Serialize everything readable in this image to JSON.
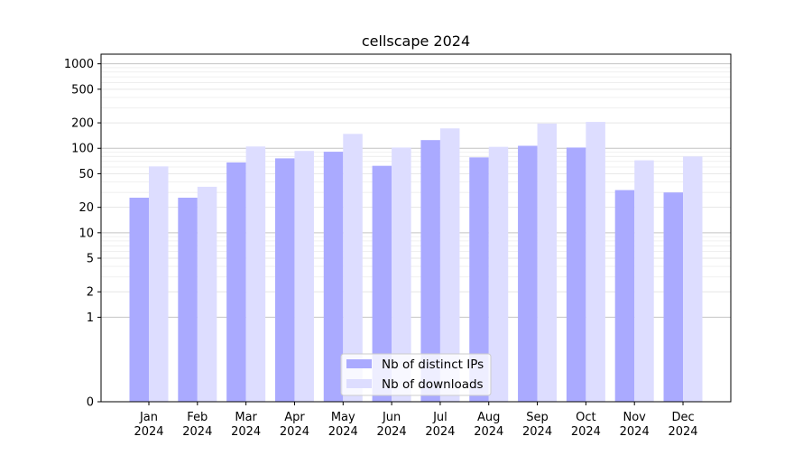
{
  "chart_data": {
    "type": "bar",
    "title": "cellscape 2024",
    "xlabel": "",
    "ylabel": "",
    "yscale": "symlog",
    "ylim": [
      0,
      1300
    ],
    "yticks": [
      0,
      1,
      2,
      5,
      10,
      20,
      50,
      100,
      200,
      500,
      1000
    ],
    "ytick_labels": [
      "0",
      "1",
      "2",
      "5",
      "10",
      "20",
      "50",
      "100",
      "200",
      "500",
      "1000"
    ],
    "grid": true,
    "legend": "bottom-center",
    "categories": [
      "Jan",
      "Feb",
      "Mar",
      "Apr",
      "May",
      "Jun",
      "Jul",
      "Aug",
      "Sep",
      "Oct",
      "Nov",
      "Dec"
    ],
    "category_years": [
      "2024",
      "2024",
      "2024",
      "2024",
      "2024",
      "2024",
      "2024",
      "2024",
      "2024",
      "2024",
      "2024",
      "2024"
    ],
    "series": [
      {
        "name": "Nb of distinct IPs",
        "color": "#aaaaff",
        "values": [
          26,
          26,
          68,
          76,
          91,
          62,
          125,
          78,
          107,
          102,
          32,
          30
        ]
      },
      {
        "name": "Nb of downloads",
        "color": "#ddddff",
        "values": [
          61,
          35,
          105,
          93,
          148,
          102,
          172,
          104,
          196,
          205,
          72,
          80
        ]
      }
    ]
  }
}
